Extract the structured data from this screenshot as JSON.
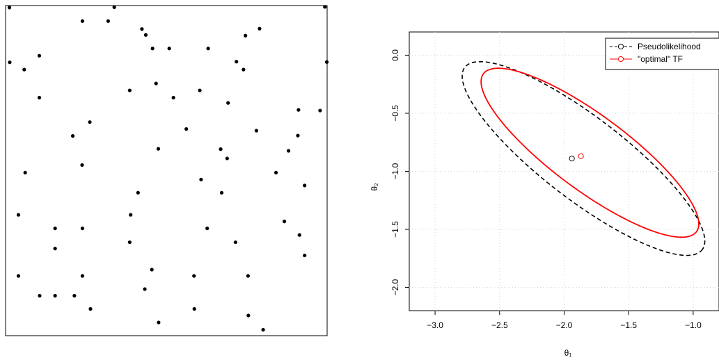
{
  "chart_data": [
    {
      "type": "scatter",
      "title": "",
      "xlabel": "",
      "ylabel": "",
      "axes_shown": false,
      "xlim": [
        0,
        1
      ],
      "ylim": [
        0,
        1
      ],
      "x": [
        0.012,
        0.338,
        0.993,
        0.239,
        0.319,
        0.424,
        0.79,
        0.746,
        0.436,
        0.457,
        0.509,
        0.63,
        0.013,
        0.105,
        0.999,
        0.058,
        0.718,
        0.74,
        0.468,
        0.386,
        0.604,
        0.522,
        0.105,
        0.911,
        0.978,
        0.692,
        0.262,
        0.209,
        0.562,
        0.909,
        0.78,
        0.88,
        0.475,
        0.669,
        0.689,
        0.238,
        0.061,
        0.841,
        0.608,
        0.93,
        0.412,
        0.672,
        0.389,
        0.04,
        0.867,
        0.627,
        0.154,
        0.239,
        0.914,
        0.715,
        0.154,
        0.386,
        0.93,
        0.455,
        0.04,
        0.586,
        0.754,
        0.239,
        0.433,
        0.154,
        0.106,
        0.214,
        0.264,
        0.587,
        0.755,
        0.476,
        0.801
      ],
      "y": [
        0.994,
        0.995,
        0.996,
        0.953,
        0.953,
        0.929,
        0.93,
        0.909,
        0.911,
        0.87,
        0.87,
        0.87,
        0.828,
        0.848,
        0.829,
        0.806,
        0.83,
        0.806,
        0.764,
        0.743,
        0.743,
        0.721,
        0.721,
        0.684,
        0.682,
        0.705,
        0.647,
        0.605,
        0.626,
        0.606,
        0.621,
        0.56,
        0.566,
        0.565,
        0.537,
        0.517,
        0.494,
        0.494,
        0.473,
        0.455,
        0.433,
        0.433,
        0.366,
        0.366,
        0.346,
        0.325,
        0.325,
        0.325,
        0.305,
        0.283,
        0.264,
        0.283,
        0.243,
        0.2,
        0.181,
        0.181,
        0.181,
        0.181,
        0.141,
        0.121,
        0.121,
        0.121,
        0.081,
        0.081,
        0.061,
        0.04,
        0.018
      ]
    },
    {
      "type": "line",
      "title": "",
      "xlabel": "θ₁",
      "ylabel": "θ₂",
      "xlim": [
        -3.2,
        -0.8
      ],
      "ylim": [
        -2.2,
        0.2
      ],
      "grid": true,
      "legend_position": "top-right",
      "x_ticks": [
        -3.0,
        -2.5,
        -2.0,
        -1.5,
        -1.0
      ],
      "x_tick_labels": [
        "−3.0",
        "−2.5",
        "−2.0",
        "−1.5",
        "−1.0"
      ],
      "y_ticks": [
        0.0,
        -0.5,
        -1.0,
        -1.5,
        -2.0
      ],
      "y_tick_labels": [
        "0.0",
        "−0.5",
        "−1.0",
        "−1.5",
        "−2.0"
      ],
      "series": [
        {
          "name": "Pseudolikelihood",
          "color": "#000000",
          "line_style": "dashed",
          "point_estimate": [
            -1.94,
            -0.89
          ],
          "ellipse": {
            "center": [
              -1.85,
              -0.89
            ],
            "semi_axis_major": 1.21,
            "semi_axis_minor": 0.34,
            "angle_deg": -41
          }
        },
        {
          "name": "\"optimal\" TF",
          "color": "#ff0000",
          "line_style": "solid",
          "point_estimate": [
            -1.87,
            -0.87
          ],
          "ellipse": {
            "center": [
              -1.8,
              -0.84
            ],
            "semi_axis_major": 1.07,
            "semi_axis_minor": 0.31,
            "angle_deg": -40
          }
        }
      ]
    }
  ]
}
